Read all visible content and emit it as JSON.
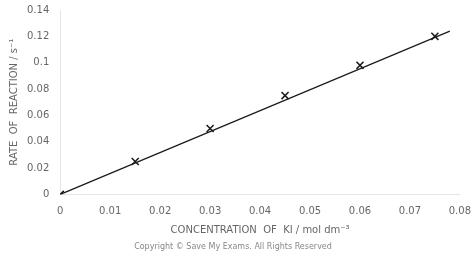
{
  "chart_data": {
    "type": "scatter",
    "xlabel": "CONCENTRATION  OF  KI / mol dm⁻³",
    "ylabel": "RATE  OF  REACTION / s⁻¹",
    "annotation": "Copyright © Save My Exams. All Rights Reserved",
    "series": [
      {
        "type": "scatter",
        "marker": "x",
        "color": "#1a1a1a",
        "x": [
          0,
          0.015,
          0.03,
          0.045,
          0.06,
          0.075
        ],
        "values": [
          0,
          0.025,
          0.05,
          0.075,
          0.098,
          0.12
        ]
      },
      {
        "type": "line",
        "line_style": "solid",
        "color": "#1a1a1a",
        "x": [
          0,
          0.078
        ],
        "values": [
          0,
          0.124
        ]
      }
    ],
    "xlim": [
      0,
      0.08
    ],
    "ylim": [
      0,
      0.14
    ],
    "xticks": [
      0,
      0.01,
      0.02,
      0.03,
      0.04,
      0.05,
      0.06,
      0.07,
      0.08
    ],
    "yticks": [
      0,
      0.02,
      0.04,
      0.06,
      0.08,
      0.1,
      0.12,
      0.14
    ],
    "grid": false
  }
}
